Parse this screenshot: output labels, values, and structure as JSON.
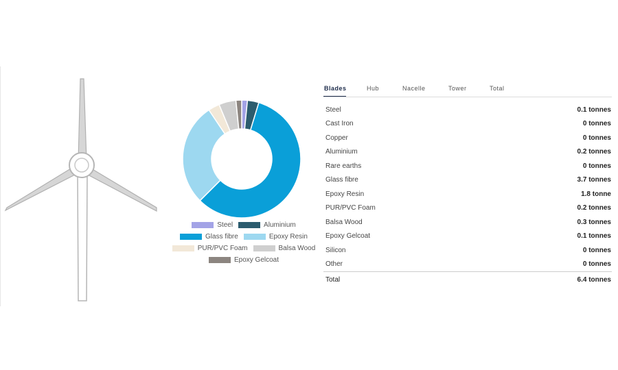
{
  "tabs": [
    {
      "label": "Blades",
      "active": true
    },
    {
      "label": "Hub",
      "active": false
    },
    {
      "label": "Nacelle",
      "active": false
    },
    {
      "label": "Tower",
      "active": false
    },
    {
      "label": "Total",
      "active": false
    }
  ],
  "table": {
    "rows": [
      {
        "material": "Steel",
        "value": "0.1 tonnes"
      },
      {
        "material": "Cast Iron",
        "value": "0 tonnes"
      },
      {
        "material": "Copper",
        "value": "0 tonnes"
      },
      {
        "material": "Aluminium",
        "value": "0.2 tonnes"
      },
      {
        "material": "Rare earths",
        "value": "0 tonnes"
      },
      {
        "material": "Glass fibre",
        "value": "3.7 tonnes"
      },
      {
        "material": "Epoxy Resin",
        "value": "1.8 tonne"
      },
      {
        "material": "PUR/PVC Foam",
        "value": "0.2 tonnes"
      },
      {
        "material": "Balsa Wood",
        "value": "0.3 tonnes"
      },
      {
        "material": "Epoxy Gelcoat",
        "value": "0.1 tonnes"
      },
      {
        "material": "Silicon",
        "value": "0 tonnes"
      },
      {
        "material": "Other",
        "value": "0 tonnes"
      }
    ],
    "total": {
      "label": "Total",
      "value": "6.4 tonnes"
    }
  },
  "chart_data": {
    "type": "pie",
    "variant": "donut",
    "start_angle_deg": 0,
    "slices": [
      {
        "label": "Steel",
        "value": 0.1,
        "color": "#a3a3e6"
      },
      {
        "label": "Aluminium",
        "value": 0.2,
        "color": "#2c5c6e"
      },
      {
        "label": "Glass fibre",
        "value": 3.7,
        "color": "#0a9fd8"
      },
      {
        "label": "Epoxy Resin",
        "value": 1.8,
        "color": "#9dd8f0"
      },
      {
        "label": "PUR/PVC Foam",
        "value": 0.2,
        "color": "#f2e8d8"
      },
      {
        "label": "Balsa Wood",
        "value": 0.3,
        "color": "#cfcfcf"
      },
      {
        "label": "Epoxy Gelcoat",
        "value": 0.1,
        "color": "#8c8580"
      }
    ],
    "legend": {
      "placement": "bottom",
      "rows": [
        [
          "Steel",
          "Aluminium"
        ],
        [
          "Glass fibre",
          "Epoxy Resin"
        ],
        [
          "PUR/PVC Foam",
          "Balsa Wood"
        ],
        [
          "Epoxy Gelcoat"
        ]
      ]
    }
  }
}
